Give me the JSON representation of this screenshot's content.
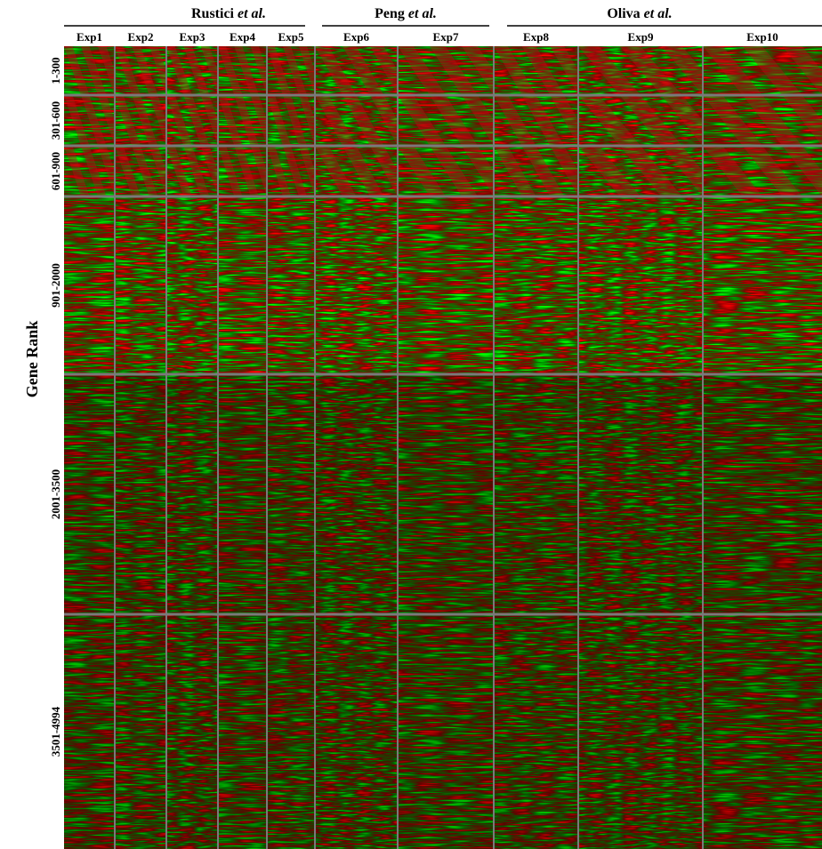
{
  "groups": [
    {
      "name": "Rustici",
      "suffix": "et al."
    },
    {
      "name": "Peng",
      "suffix": "et al."
    },
    {
      "name": "Oliva",
      "suffix": "et al."
    }
  ],
  "experiments": [
    "Exp1",
    "Exp2",
    "Exp3",
    "Exp4",
    "Exp5",
    "Exp6",
    "Exp7",
    "Exp8",
    "Exp9",
    "Exp10"
  ],
  "row_labels": [
    "1-300",
    "301-600",
    "601-900",
    "901-2000",
    "2001-3500",
    "3501-4994"
  ],
  "y_axis_label": "Gene Rank"
}
